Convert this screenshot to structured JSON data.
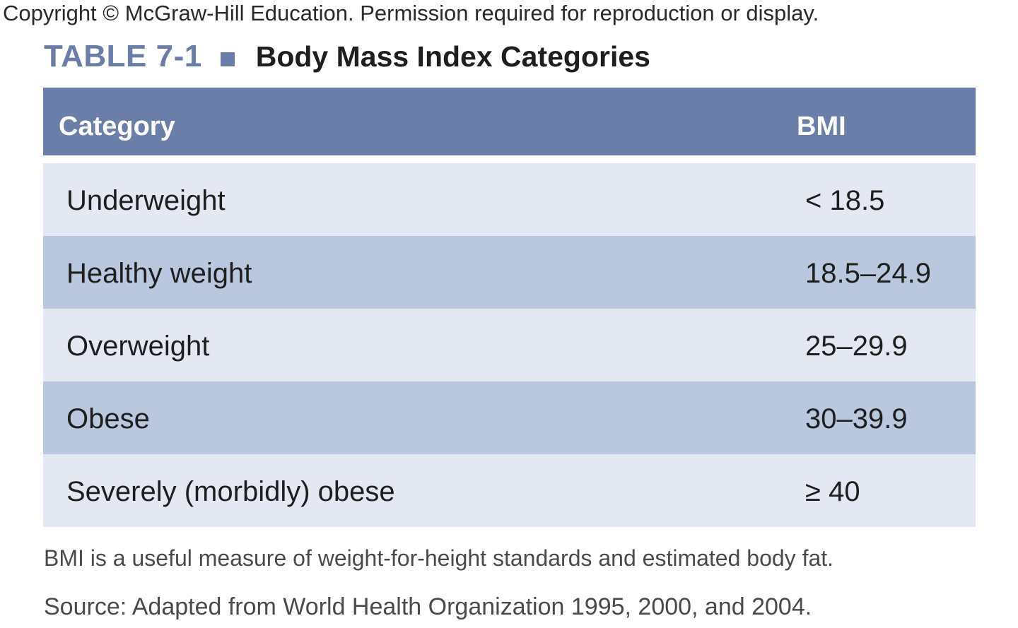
{
  "copyright": "Copyright © McGraw-Hill Education. Permission required for reproduction or display.",
  "table": {
    "label": "TABLE 7-1",
    "title": "Body Mass Index Categories",
    "headers": {
      "category": "Category",
      "bmi": "BMI"
    },
    "rows": [
      {
        "category": "Underweight",
        "bmi": "< 18.5"
      },
      {
        "category": "Healthy weight",
        "bmi": "18.5–24.9"
      },
      {
        "category": "Overweight",
        "bmi": "25–29.9"
      },
      {
        "category": "Obese",
        "bmi": "30–39.9"
      },
      {
        "category": "Severely (morbidly) obese",
        "bmi": "≥ 40"
      }
    ]
  },
  "note": "BMI is a useful measure of weight-for-height standards and estimated body fat.",
  "source": "Source: Adapted from World Health Organization 1995, 2000, and 2004.",
  "colors": {
    "header_bg": "#6b7da9",
    "row_light": "#e4e8f3",
    "row_dark": "#b9c7df",
    "label_accent": "#6a7ca8"
  }
}
